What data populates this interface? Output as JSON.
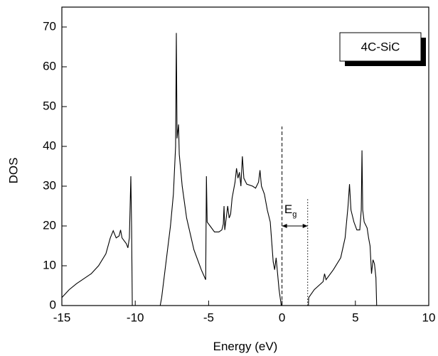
{
  "chart_data": {
    "type": "line",
    "xlabel": "Energy (eV)",
    "ylabel": "DOS",
    "label": "4C-SiC",
    "gap": {
      "label": "E",
      "subscript": "g",
      "x": [
        0,
        1.75
      ],
      "y": 20,
      "dashed_top": 45,
      "dotted_top": 27
    },
    "xlim": [
      -15,
      10
    ],
    "xticks": [
      -15,
      -10,
      -5,
      0,
      5,
      10
    ],
    "ylim": [
      0,
      75
    ],
    "yticks": [
      0,
      10,
      20,
      30,
      40,
      50,
      60,
      70
    ],
    "color": "#000000",
    "x": [
      -15,
      -14.5,
      -14,
      -13,
      -12.5,
      -12,
      -11.7,
      -11.5,
      -11.3,
      -11.1,
      -11,
      -10.9,
      -10.6,
      -10.5,
      -10.4,
      -10.3,
      -10.25,
      -10.2,
      null,
      -8.3,
      -8.2,
      -8,
      -7.8,
      -7.6,
      -7.4,
      -7.25,
      -7.2,
      -7.15,
      -7.05,
      -7,
      -6.8,
      -6.5,
      -6,
      -5.5,
      -5.2,
      -5.15,
      -5.1,
      -4.9,
      -4.6,
      -4.3,
      -4.1,
      -4,
      -3.95,
      -3.9,
      -3.8,
      -3.7,
      -3.6,
      -3.5,
      -3.4,
      -3.2,
      -3.1,
      -3,
      -2.9,
      -2.8,
      -2.7,
      -2.6,
      -2.4,
      -2,
      -1.8,
      -1.6,
      -1.5,
      -1.4,
      -1.2,
      -1,
      -0.8,
      -0.7,
      -0.6,
      -0.5,
      -0.4,
      -0.3,
      -0.2,
      -0.05,
      null,
      1.8,
      1.82,
      2.2,
      2.8,
      2.9,
      3,
      3.5,
      4,
      4.3,
      4.5,
      4.6,
      4.7,
      4.9,
      5.1,
      5.3,
      5.4,
      5.45,
      5.5,
      5.6,
      5.8,
      5.9,
      6,
      6.1,
      6.2,
      6.3,
      6.4,
      6.45
    ],
    "values": [
      2,
      4,
      5.5,
      8,
      10,
      13,
      17,
      18.8,
      17,
      17.5,
      19,
      17,
      15.5,
      14.5,
      17,
      32.5,
      20,
      0,
      null,
      0,
      2,
      8,
      14,
      20,
      28,
      40,
      68.5,
      42,
      45.5,
      38,
      30,
      22,
      14,
      9,
      6.5,
      32.5,
      21,
      20,
      18.5,
      18.5,
      19,
      20.5,
      25,
      19,
      22,
      25,
      22,
      23,
      27,
      31,
      34.5,
      32,
      33.5,
      30,
      37.5,
      32,
      30.5,
      30,
      29.5,
      31,
      34,
      30,
      28,
      24,
      21,
      16,
      11,
      9,
      12,
      8,
      4,
      0,
      null,
      0,
      2,
      4,
      6,
      8,
      6.5,
      9,
      12,
      17,
      25,
      30.5,
      24,
      21,
      19,
      19,
      24,
      39,
      24,
      21,
      19.5,
      17,
      15,
      8,
      11.5,
      10.5,
      7,
      0
    ]
  }
}
